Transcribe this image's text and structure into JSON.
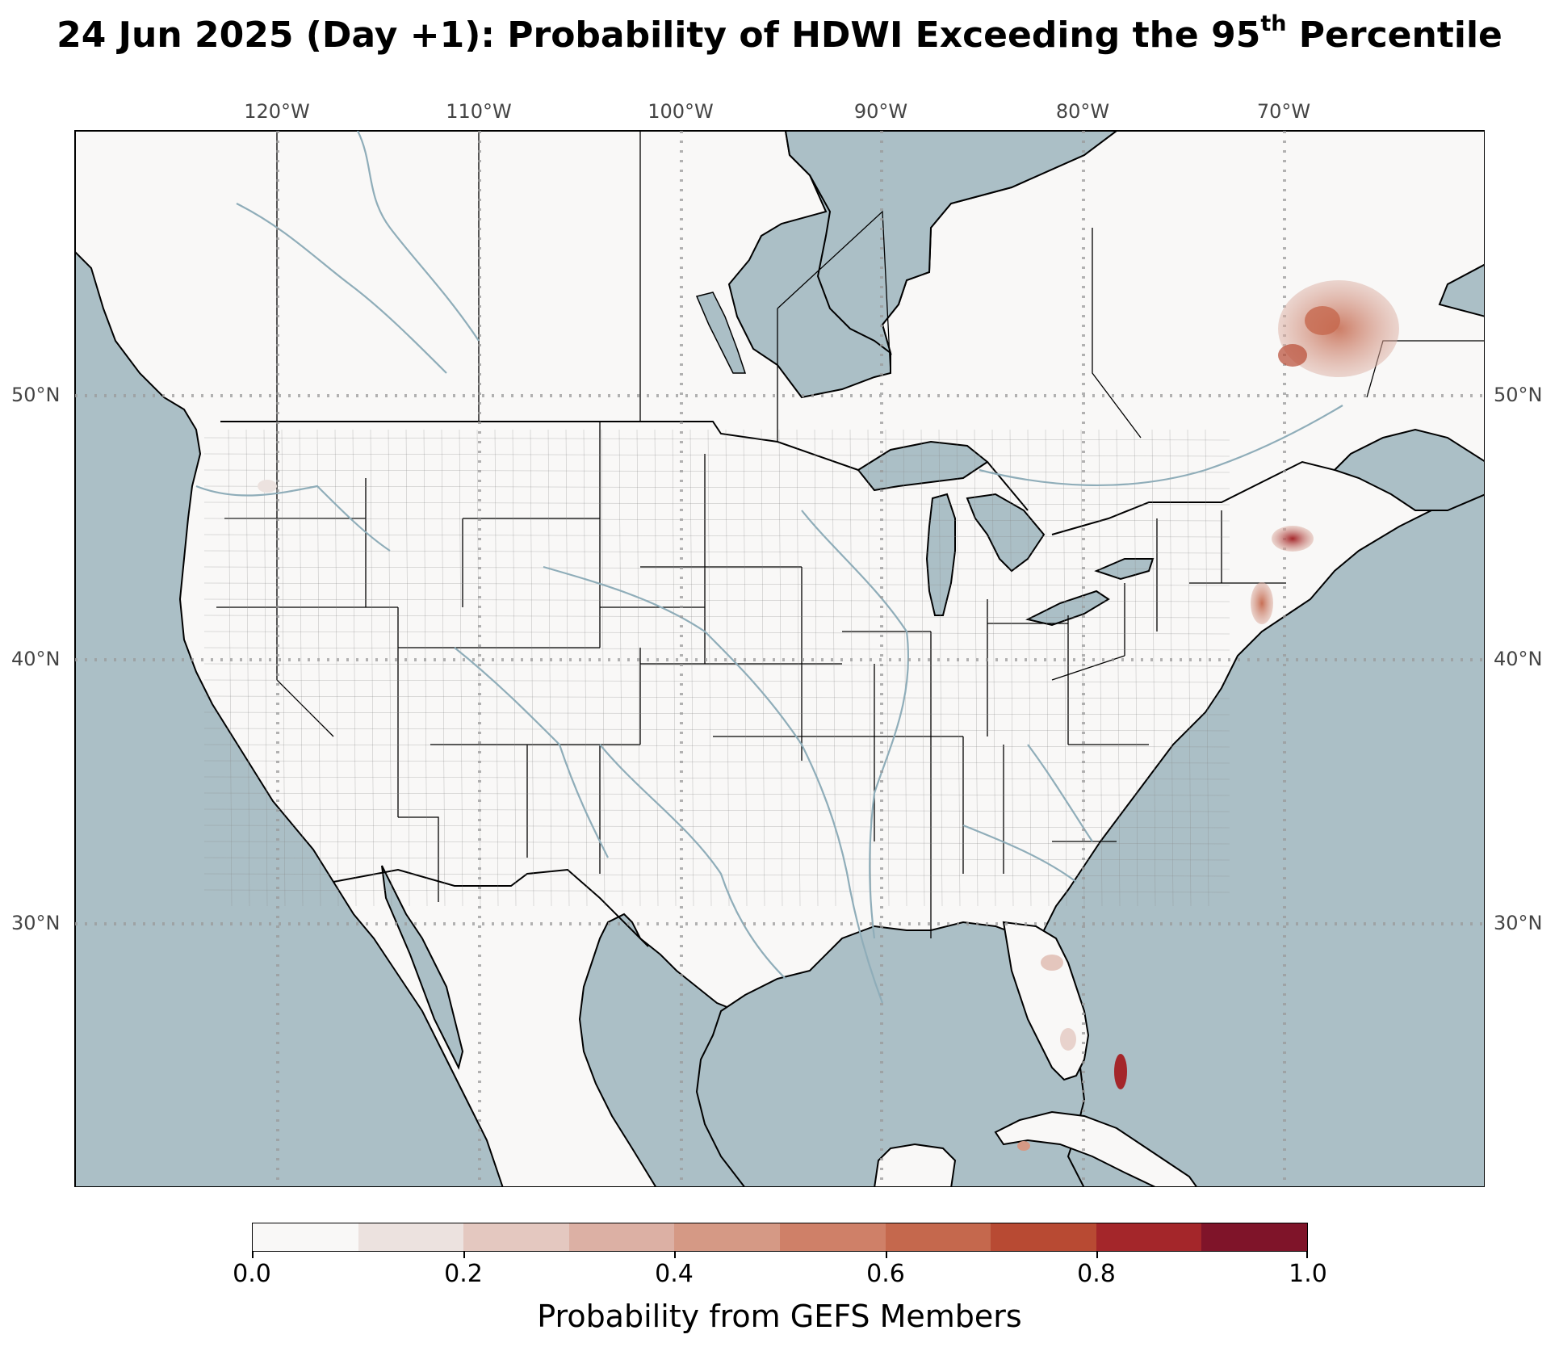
{
  "title": {
    "prefix": "24 Jun 2025 (Day +1): Probability of HDWI Exceeding the 95",
    "superscript": "th",
    "suffix": " Percentile"
  },
  "map": {
    "longitude_labels": [
      "120°W",
      "110°W",
      "100°W",
      "90°W",
      "80°W",
      "70°W"
    ],
    "longitude_values": [
      -120,
      -110,
      -100,
      -90,
      -80,
      -70
    ],
    "latitude_labels": [
      "50°N",
      "40°N",
      "30°N"
    ],
    "latitude_values": [
      50,
      40,
      30
    ],
    "colors": {
      "ocean": "#abbfc6",
      "land": "#f9f8f7",
      "border": "#000000",
      "rivers": "#8fadb9",
      "gridlines": "#9a9a9a"
    },
    "hotspots": [
      {
        "region": "Quebec interior",
        "probability": 0.5
      },
      {
        "region": "Coastal Maine",
        "probability": 0.8
      },
      {
        "region": "Massachusetts coast",
        "probability": 0.6
      },
      {
        "region": "Northern Florida",
        "probability": 0.3
      },
      {
        "region": "Southern Florida",
        "probability": 0.2
      },
      {
        "region": "Andros Island, Bahamas",
        "probability": 0.8
      },
      {
        "region": "Western Cuba",
        "probability": 0.4
      },
      {
        "region": "Eastern Washington",
        "probability": 0.1
      }
    ]
  },
  "colorbar": {
    "label": "Probability from GEFS Members",
    "ticks": [
      "0.0",
      "0.2",
      "0.4",
      "0.6",
      "0.8",
      "1.0"
    ],
    "colors": [
      "#f9f8f7",
      "#ece2df",
      "#e4c8c0",
      "#dcb0a4",
      "#d59985",
      "#cf8068",
      "#c5684d",
      "#b84a33",
      "#a4262a",
      "#7f1429"
    ]
  }
}
